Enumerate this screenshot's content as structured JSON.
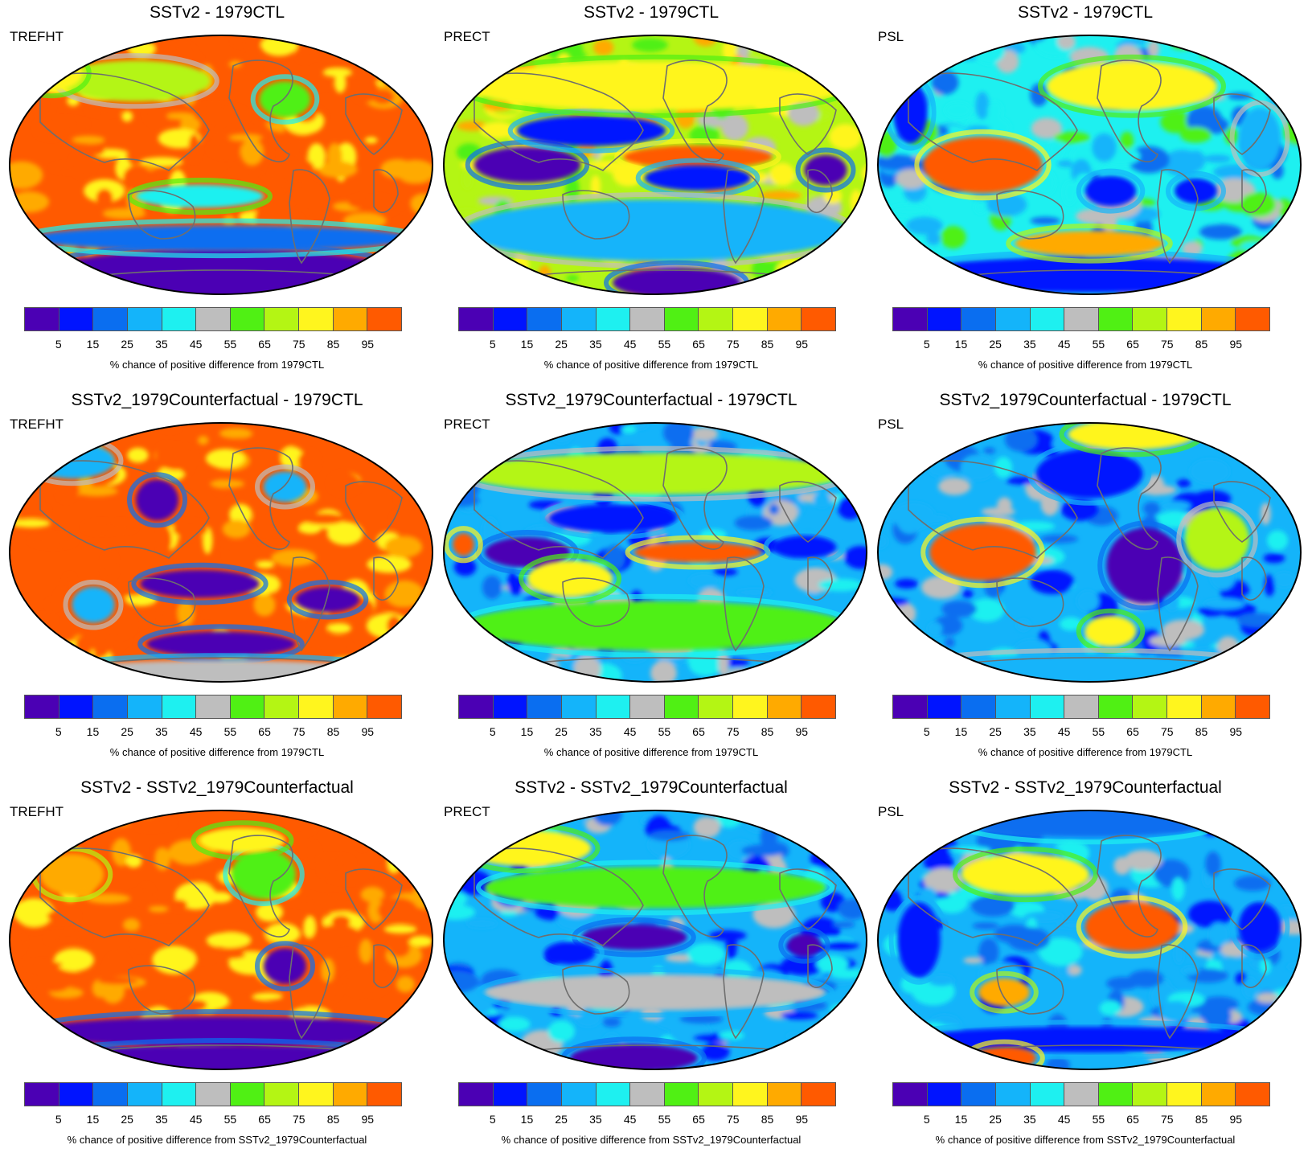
{
  "colorbar": {
    "colors": [
      "#4B00B4",
      "#0014FF",
      "#0A6EF0",
      "#14B4FA",
      "#1EF0F0",
      "#BEBEBE",
      "#50F014",
      "#B4F514",
      "#FFF51E",
      "#FFAA00",
      "#FF5A00"
    ],
    "tick_labels": [
      "5",
      "15",
      "25",
      "35",
      "45",
      "55",
      "65",
      "75",
      "85",
      "95"
    ]
  },
  "chart_data": [
    {
      "type": "heatmap",
      "title": "SSTv2 - 1979CTL",
      "variable": "TREFHT",
      "colorbar_label": "% chance of positive difference from 1979CTL",
      "colorbar_ticks": [
        5,
        15,
        25,
        35,
        45,
        55,
        65,
        75,
        85,
        95
      ],
      "dominant_classes": [
        "95+",
        "<5 (Antarctica)"
      ]
    },
    {
      "type": "heatmap",
      "title": "SSTv2 - 1979CTL",
      "variable": "PRECT",
      "colorbar_label": "% chance of positive difference from 1979CTL",
      "colorbar_ticks": [
        5,
        15,
        25,
        35,
        45,
        55,
        65,
        75,
        85,
        95
      ],
      "dominant_classes": [
        "95+ (equatorial Pacific)",
        "<5 (tropical bands)"
      ]
    },
    {
      "type": "heatmap",
      "title": "SSTv2 - 1979CTL",
      "variable": "PSL",
      "colorbar_label": "% chance of positive difference from 1979CTL",
      "colorbar_ticks": [
        5,
        15,
        25,
        35,
        45,
        55,
        65,
        75,
        85,
        95
      ],
      "dominant_classes": [
        "95+ (Indian Ocean/Australia)",
        "25-35"
      ]
    },
    {
      "type": "heatmap",
      "title": "SSTv2_1979Counterfactual - 1979CTL",
      "variable": "TREFHT",
      "colorbar_label": "% chance of positive difference from 1979CTL",
      "colorbar_ticks": [
        5,
        15,
        25,
        35,
        45,
        55,
        65,
        75,
        85,
        95
      ],
      "dominant_classes": [
        "95+",
        "<5"
      ]
    },
    {
      "type": "heatmap",
      "title": "SSTv2_1979Counterfactual - 1979CTL",
      "variable": "PRECT",
      "colorbar_label": "% chance of positive difference from 1979CTL",
      "colorbar_ticks": [
        5,
        15,
        25,
        35,
        45,
        55,
        65,
        75,
        85,
        95
      ],
      "dominant_classes": [
        "95+ (equatorial Pacific)",
        "<5"
      ]
    },
    {
      "type": "heatmap",
      "title": "SSTv2_1979Counterfactual - 1979CTL",
      "variable": "PSL",
      "colorbar_label": "% chance of positive difference from 1979CTL",
      "colorbar_ticks": [
        5,
        15,
        25,
        35,
        45,
        55,
        65,
        75,
        85,
        95
      ],
      "dominant_classes": [
        "95+ (Indian Ocean)",
        "<5 (eastern Pacific)"
      ]
    },
    {
      "type": "heatmap",
      "title": "SSTv2 - SSTv2_1979Counterfactual",
      "variable": "TREFHT",
      "colorbar_label": "% chance of positive difference from SSTv2_1979Counterfactual",
      "colorbar_ticks": [
        5,
        15,
        25,
        35,
        45,
        55,
        65,
        75,
        85,
        95
      ],
      "dominant_classes": [
        "95+",
        "<5 (Southern Ocean)"
      ]
    },
    {
      "type": "heatmap",
      "title": "SSTv2 - SSTv2_1979Counterfactual",
      "variable": "PRECT",
      "colorbar_label": "% chance of positive difference from SSTv2_1979Counterfactual",
      "colorbar_ticks": [
        5,
        15,
        25,
        35,
        45,
        55,
        65,
        75,
        85,
        95
      ],
      "dominant_classes": [
        "<5 (central Pacific)",
        "25-35"
      ]
    },
    {
      "type": "heatmap",
      "title": "SSTv2 - SSTv2_1979Counterfactual",
      "variable": "PSL",
      "colorbar_label": "% chance of positive difference from SSTv2_1979Counterfactual",
      "colorbar_ticks": [
        5,
        15,
        25,
        35,
        45,
        55,
        65,
        75,
        85,
        95
      ],
      "dominant_classes": [
        "95+ (Pacific)",
        "15-25"
      ]
    }
  ]
}
